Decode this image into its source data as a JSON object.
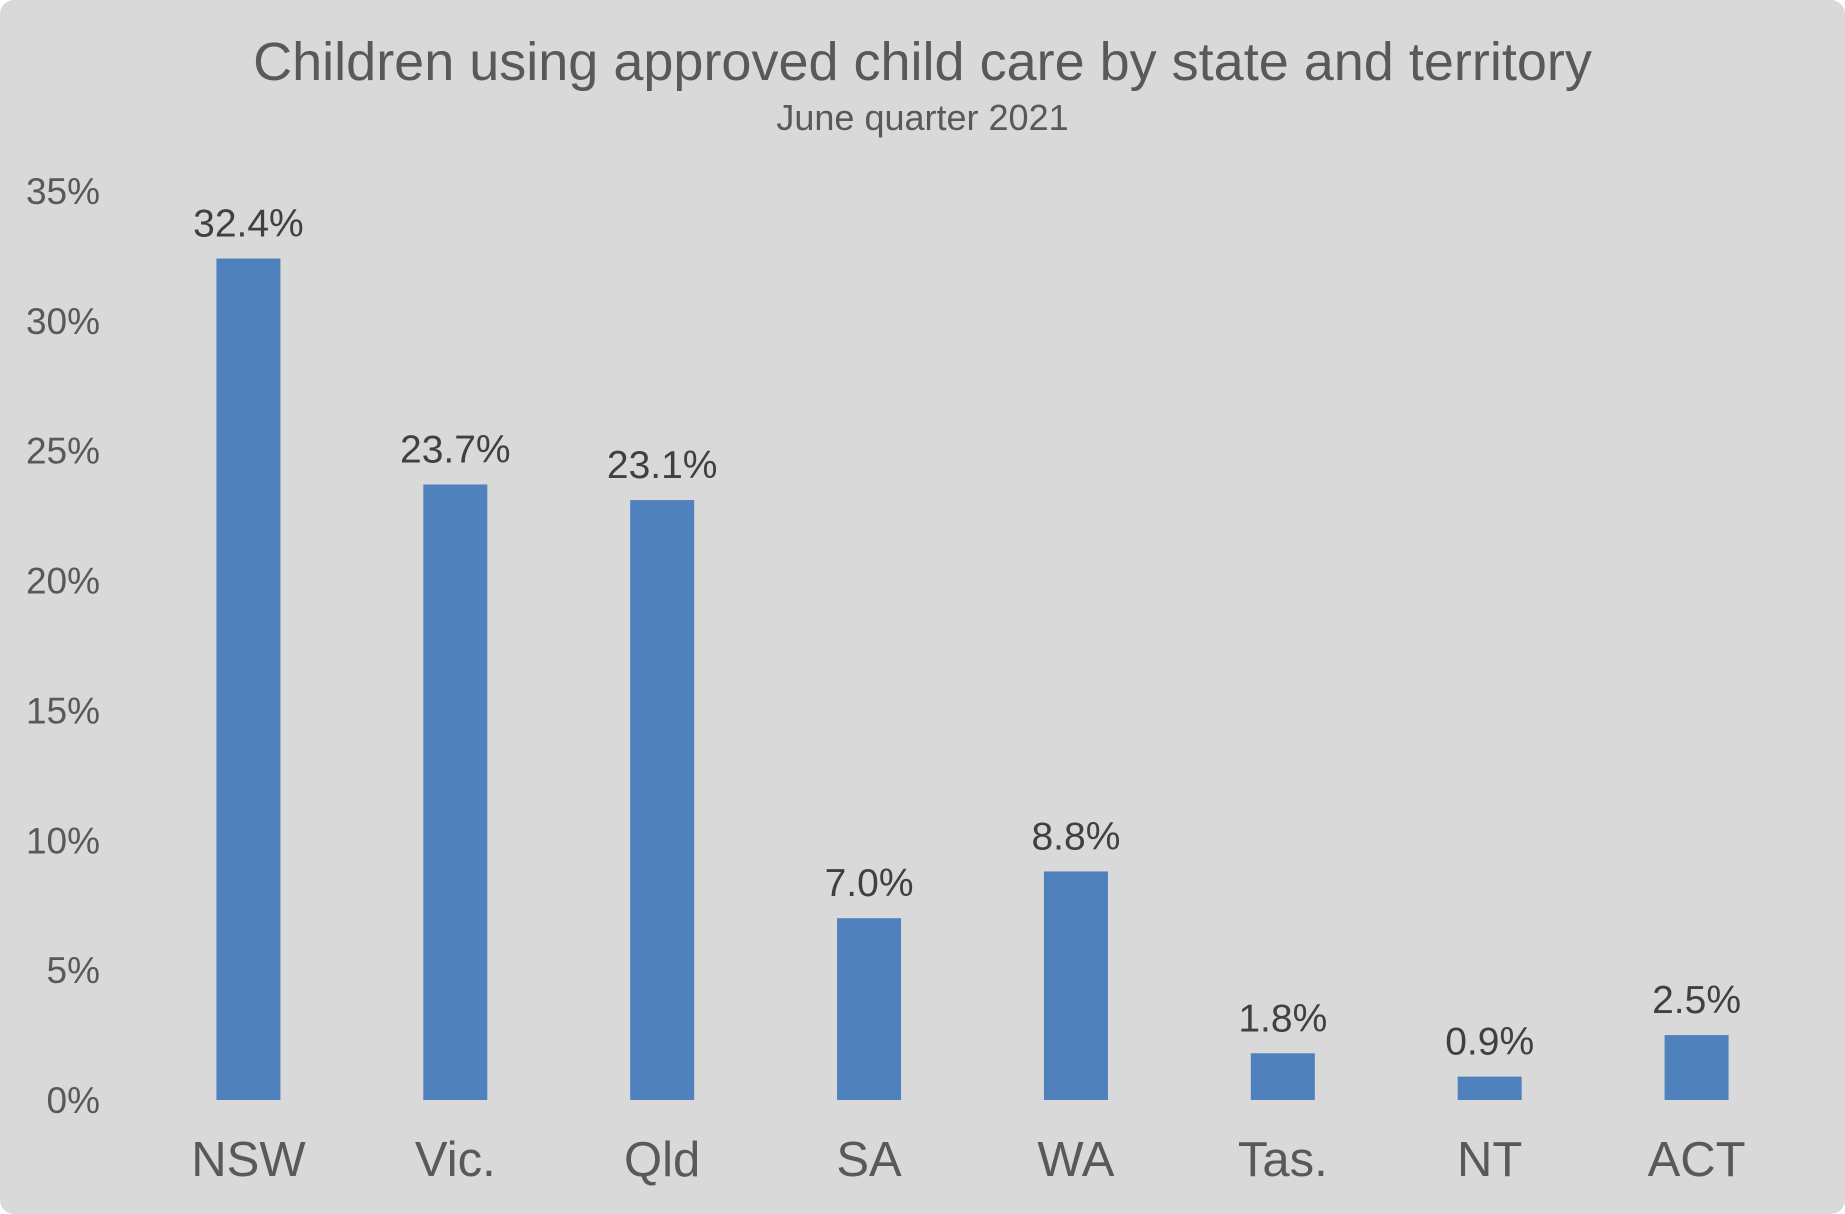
{
  "chart_data": {
    "type": "bar",
    "title": "Children using approved child care by state and territory",
    "subtitle": "June quarter 2021",
    "categories": [
      "NSW",
      "Vic.",
      "Qld",
      "SA",
      "WA",
      "Tas.",
      "NT",
      "ACT"
    ],
    "values": [
      32.4,
      23.7,
      23.1,
      7.0,
      8.8,
      1.8,
      0.9,
      2.5
    ],
    "data_labels": [
      "32.4%",
      "23.7%",
      "23.1%",
      "7.0%",
      "8.8%",
      "1.8%",
      "0.9%",
      "2.5%"
    ],
    "ylim": [
      0,
      35
    ],
    "yticks": [
      0,
      5,
      10,
      15,
      20,
      25,
      30,
      35
    ],
    "ytick_labels": [
      "0%",
      "5%",
      "10%",
      "15%",
      "20%",
      "25%",
      "30%",
      "35%"
    ],
    "xlabel": "",
    "ylabel": "",
    "grid": false,
    "legend": "none",
    "colors": {
      "bar": "#4f81bd",
      "background": "#d9d9d9",
      "text": "#595959",
      "data_label": "#404040"
    }
  }
}
